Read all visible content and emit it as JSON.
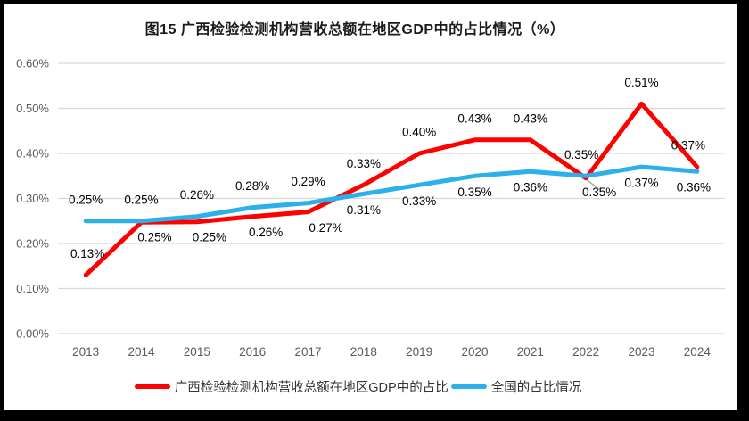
{
  "title": "图15 广西检验检测机构营收总额在地区GDP中的占比情况（%）",
  "chart_data": {
    "type": "line",
    "title": "图15 广西检验检测机构营收总额在地区GDP中的占比情况（%）",
    "categories": [
      "2013",
      "2014",
      "2015",
      "2016",
      "2017",
      "2018",
      "2019",
      "2020",
      "2021",
      "2022",
      "2023",
      "2024"
    ],
    "ylim": [
      0,
      0.6
    ],
    "yticks": [
      {
        "value": 0.0,
        "label": "0.00%"
      },
      {
        "value": 0.1,
        "label": "0.10%"
      },
      {
        "value": 0.2,
        "label": "0.20%"
      },
      {
        "value": 0.3,
        "label": "0.30%"
      },
      {
        "value": 0.4,
        "label": "0.40%"
      },
      {
        "value": 0.5,
        "label": "0.50%"
      },
      {
        "value": 0.6,
        "label": "0.60%"
      }
    ],
    "grid": true,
    "legend_position": "bottom",
    "series": [
      {
        "name": "广西检验检测机构营收总额在地区GDP中的占比",
        "color": "#FF0000",
        "values": [
          0.13,
          0.25,
          0.25,
          0.26,
          0.27,
          0.33,
          0.4,
          0.43,
          0.43,
          0.35,
          0.51,
          0.37
        ],
        "labels": [
          "0.13%",
          "0.25%",
          "0.25%",
          "0.26%",
          "0.27%",
          "0.33%",
          "0.40%",
          "0.43%",
          "0.43%",
          "0.35%",
          "0.51%",
          "0.37%"
        ],
        "label_sides": [
          "above",
          "below",
          "below",
          "below",
          "below",
          "above",
          "above",
          "above",
          "above",
          "above",
          "above",
          "above"
        ],
        "label_dx": [
          2,
          15,
          14,
          15,
          20,
          0,
          0,
          0,
          0,
          -5,
          0,
          -10
        ],
        "plot_values": [
          0.13,
          0.247,
          0.248,
          0.26,
          0.27,
          0.33,
          0.4,
          0.43,
          0.43,
          0.345,
          0.51,
          0.37
        ]
      },
      {
        "name": "全国的占比情况",
        "color": "#2BB0EA",
        "values": [
          0.25,
          0.25,
          0.26,
          0.28,
          0.29,
          0.31,
          0.33,
          0.35,
          0.36,
          0.35,
          0.37,
          0.36
        ],
        "labels": [
          "0.25%",
          "0.25%",
          "0.26%",
          "0.28%",
          "0.29%",
          "0.31%",
          "0.33%",
          "0.35%",
          "0.36%",
          "0.35%",
          "0.37%",
          "0.36%"
        ],
        "label_sides": [
          "above",
          "above",
          "above",
          "above",
          "above",
          "below",
          "below",
          "below",
          "below",
          "below",
          "below",
          "below"
        ],
        "label_dx": [
          0,
          0,
          0,
          0,
          0,
          0,
          0,
          0,
          0,
          15,
          0,
          -4
        ]
      }
    ],
    "callout": {
      "series": 1,
      "index": 9,
      "label": "0.35%",
      "color": "#A6A6A6"
    }
  },
  "colors": {
    "grid": "#D9D9D9",
    "axis_text": "#595959",
    "data_label": "#000000",
    "background": "#FFFFFF",
    "border": "#000000"
  }
}
